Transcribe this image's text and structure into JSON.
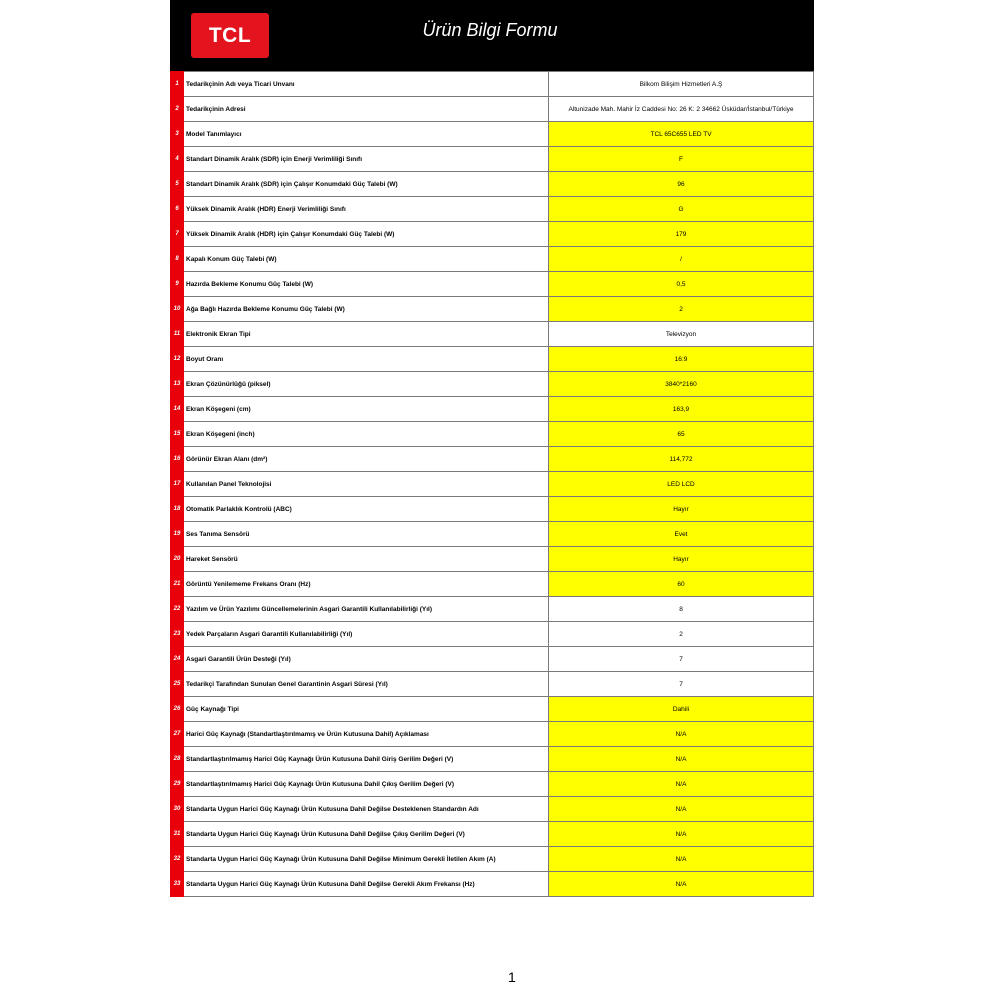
{
  "header": {
    "logo": "TCL",
    "title": "Ürün Bilgi Formu"
  },
  "rows": [
    {
      "n": "1",
      "label": "Tedarikçinin Adı veya Ticari Unvanı",
      "value": "Bilkom Bilişim Hizmetleri A.Ş",
      "highlight": false
    },
    {
      "n": "2",
      "label": "Tedarikçinin Adresi",
      "value": "Altunizade Mah. Mahir İz Caddesi No: 26 K: 2 34662 Üsküdar/İstanbul/Türkiye",
      "highlight": false
    },
    {
      "n": "3",
      "label": "Model Tanımlayıcı",
      "value": "TCL 65C655 LED TV",
      "highlight": true
    },
    {
      "n": "4",
      "label": "Standart Dinamik Aralık (SDR) için Enerji Verimliliği Sınıfı",
      "value": "F",
      "highlight": true
    },
    {
      "n": "5",
      "label": "Standart Dinamik Aralık (SDR) için Çalışır Konumdaki Güç Talebi (W)",
      "value": "96",
      "highlight": true
    },
    {
      "n": "6",
      "label": "Yüksek Dinamik Aralık (HDR) Enerji Verimliliği Sınıfı",
      "value": "G",
      "highlight": true
    },
    {
      "n": "7",
      "label": "Yüksek Dinamik Aralık (HDR) için Çalışır Konumdaki Güç Talebi (W)",
      "value": "179",
      "highlight": true
    },
    {
      "n": "8",
      "label": "Kapalı Konum Güç Talebi (W)",
      "value": "/",
      "highlight": true
    },
    {
      "n": "9",
      "label": "Hazırda Bekleme Konumu Güç Talebi (W)",
      "value": "0,5",
      "highlight": true
    },
    {
      "n": "10",
      "label": "Ağa Bağlı Hazırda Bekleme Konumu Güç Talebi (W)",
      "value": "2",
      "highlight": true
    },
    {
      "n": "11",
      "label": "Elektronik Ekran Tipi",
      "value": "Televizyon",
      "highlight": false
    },
    {
      "n": "12",
      "label": "Boyut Oranı",
      "value": "16:9",
      "highlight": true
    },
    {
      "n": "13",
      "label": "Ekran Çözünürlüğü (piksel)",
      "value": "3840*2160",
      "highlight": true
    },
    {
      "n": "14",
      "label": "Ekran Köşegeni (cm)",
      "value": "163,9",
      "highlight": true
    },
    {
      "n": "15",
      "label": "Ekran Köşegeni (inch)",
      "value": "65",
      "highlight": true
    },
    {
      "n": "16",
      "label": "Görünür Ekran Alanı (dm²)",
      "value": "114,772",
      "highlight": true
    },
    {
      "n": "17",
      "label": "Kullanılan Panel Teknolojisi",
      "value": "LED LCD",
      "highlight": true
    },
    {
      "n": "18",
      "label": "Otomatik Parlaklık Kontrolü (ABC)",
      "value": "Hayır",
      "highlight": true
    },
    {
      "n": "19",
      "label": "Ses Tanıma Sensörü",
      "value": "Evet",
      "highlight": true
    },
    {
      "n": "20",
      "label": "Hareket Sensörü",
      "value": "Hayır",
      "highlight": true
    },
    {
      "n": "21",
      "label": "Görüntü Yenilememe Frekans Oranı (Hz)",
      "value": "60",
      "highlight": true
    },
    {
      "n": "22",
      "label": "Yazılım ve Ürün Yazılımı Güncellemelerinin Asgari Garantili Kullanılabilirliği (Yıl)",
      "value": "8",
      "highlight": false
    },
    {
      "n": "23",
      "label": "Yedek Parçaların Asgari Garantili Kullanılabilirliği (Yıl)",
      "value": "2",
      "highlight": false
    },
    {
      "n": "24",
      "label": "Asgari Garantili Ürün Desteği (Yıl)",
      "value": "7",
      "highlight": false
    },
    {
      "n": "25",
      "label": "Tedarikçi Tarafından Sunulan Genel Garantinin Asgari Süresi (Yıl)",
      "value": "7",
      "highlight": false
    },
    {
      "n": "26",
      "label": "Güç Kaynağı Tipi",
      "value": "Dahili",
      "highlight": true
    },
    {
      "n": "27",
      "label": "Harici Güç Kaynağı (Standartlaştırılmamış ve Ürün Kutusuna Dahil) Açıklaması",
      "value": "N/A",
      "highlight": true
    },
    {
      "n": "28",
      "label": "Standartlaştırılmamış Harici Güç Kaynağı Ürün Kutusuna Dahil Giriş Gerilim Değeri (V)",
      "value": "N/A",
      "highlight": true
    },
    {
      "n": "29",
      "label": "Standartlaştırılmamış Harici Güç Kaynağı Ürün Kutusuna Dahil Çıkış Gerilim Değeri (V)",
      "value": "N/A",
      "highlight": true
    },
    {
      "n": "30",
      "label": "Standarta Uygun Harici Güç Kaynağı Ürün Kutusuna Dahil Değilse Desteklenen Standardın Adı",
      "value": "N/A",
      "highlight": true
    },
    {
      "n": "31",
      "label": "Standarta Uygun Harici Güç Kaynağı Ürün Kutusuna Dahil Değilse Çıkış Gerilim Değeri (V)",
      "value": "N/A",
      "highlight": true
    },
    {
      "n": "32",
      "label": "Standarta Uygun Harici Güç Kaynağı Ürün Kutusuna Dahil Değilse Minimum Gerekli İletilen Akım (A)",
      "value": "N/A",
      "highlight": true
    },
    {
      "n": "33",
      "label": "Standarta Uygun Harici Güç Kaynağı Ürün Kutusuna Dahil Değilse Gerekli Akım Frekansı (Hz)",
      "value": "N/A",
      "highlight": true
    }
  ],
  "colors": {
    "highlight": "#ffff00",
    "number": "#e8000b",
    "header": "#000000",
    "logo": "#e3141e"
  },
  "footer": {
    "page_number": "1"
  }
}
